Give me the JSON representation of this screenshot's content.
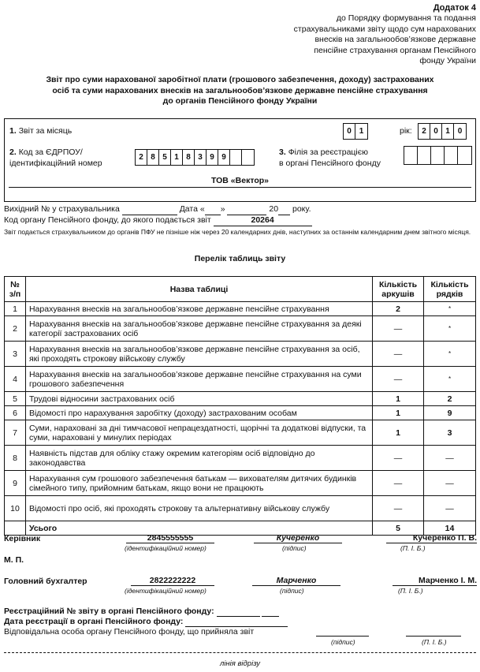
{
  "header": {
    "annex": "Додаток 4",
    "subtitle_lines": [
      "до Порядку формування та подання",
      "страхувальниками звіту щодо сум нарахованих",
      "внесків на загальнообов’язкове державне",
      "пенсійне страхування органам Пенсійного",
      "фонду України"
    ]
  },
  "title_lines": [
    "Звіт про суми нарахованої заробітної плати (грошового забезпечення, доходу) застрахованих",
    "осіб та суми нарахованих внесків на загальнообов’язкове державне пенсійне страхування",
    "до органів Пенсійного фонду України"
  ],
  "form": {
    "month_label_num": "1.",
    "month_label": "Звіт за місяць",
    "month_digits": [
      "0",
      "1"
    ],
    "year_label": "рік:",
    "year_digits": [
      "2",
      "0",
      "1",
      "0"
    ],
    "code_label_num": "2.",
    "code_label_1": "Код за ЄДРПОУ/",
    "code_label_2": "ідентифікаційний номер",
    "code_digits": [
      "2",
      "8",
      "5",
      "1",
      "8",
      "3",
      "9",
      "9",
      "",
      ""
    ],
    "branch_label_num": "3.",
    "branch_label_1": "Філія за реєстрацією",
    "branch_label_2": "в органі Пенсійного фонду",
    "branch_digits": [
      "",
      "",
      "",
      "",
      ""
    ],
    "company": "ТОВ «Вектор»"
  },
  "outgoing": {
    "text1": "Вихідний № у страхувальника",
    "text2": "Дата «",
    "text3": "»",
    "text4": "20",
    "text5": "року.",
    "fund_code_label": "Код органу Пенсійного фонду, до якого подається звіт",
    "fund_code": "20264",
    "note": "Звіт подається страхувальником до органів ПФУ не пізніше ніж через 20 календарних днів, наступних за останнім календарним днем звітного місяця."
  },
  "table": {
    "title": "Перелік таблиць звіту",
    "headers": [
      "№ з/п",
      "Назва таблиці",
      "Кількість аркушів",
      "Кількість рядків"
    ],
    "rows": [
      [
        "1",
        "Нарахування внесків на загальнообов’язкове державне пенсійне страхування",
        "2",
        "*"
      ],
      [
        "2",
        "Нарахування внесків на загальнообов’язкове державне пенсійне страхування за деякі категорії застрахованих осіб",
        "—",
        "*"
      ],
      [
        "3",
        "Нарахування внесків на загальнообов’язкове державне пенсійне страхування за осіб, які проходять строкову військову службу",
        "—",
        "*"
      ],
      [
        "4",
        "Нарахування внесків на загальнообов’язкове державне пенсійне страхування на суми грошового забезпечення",
        "—",
        "*"
      ],
      [
        "5",
        "Трудові відносини застрахованих осіб",
        "1",
        "2"
      ],
      [
        "6",
        "Відомості про нарахування заробітку (доходу) застрахованим особам",
        "1",
        "9"
      ],
      [
        "7",
        "Суми, нараховані за дні тимчасової непрацездатності, щорічні та додаткові відпуски, та суми, нараховані у минулих періодах",
        "1",
        "3"
      ],
      [
        "8",
        "Наявність підстав для обліку стажу окремим категоріям осіб відповідно до законодавства",
        "—",
        "—"
      ],
      [
        "9",
        "Нарахування сум грошового забезпечення батькам — вихователям дитячих будинків сімейного типу, прийомним батькам, якщо вони не працюють",
        "—",
        "—"
      ],
      [
        "10",
        "Відомості про осіб, які проходять строкову та альтернативну військову службу",
        "—",
        "—"
      ]
    ],
    "total": [
      "Усього",
      "5",
      "14"
    ]
  },
  "signatures": {
    "director_label": "Керівник",
    "director_id": "2845555555",
    "director_sign": "Кучеренко",
    "director_name": "Кучеренко П. В.",
    "id_caption": "(ідентифікаційний номер)",
    "sign_caption": "(підпис)",
    "name_caption": "(П. І. Б.)",
    "stamp": "М. П.",
    "accountant_label": "Головний бухгалтер",
    "accountant_id": "2822222222",
    "accountant_sign": "Марченко",
    "accountant_name": "Марченко І. М."
  },
  "registration": {
    "reg_no": "Реєстраційний № звіту в органі Пенсійного фонду:",
    "reg_date": "Дата реєстрації в органі Пенсійного фонду:",
    "responsible": "Відповідальна особа органу Пенсійного фонду, що прийняла звіт",
    "sign_caption": "(підпис)",
    "name_caption": "(П. І. Б.)",
    "cut_line": "лінія відрізу"
  }
}
